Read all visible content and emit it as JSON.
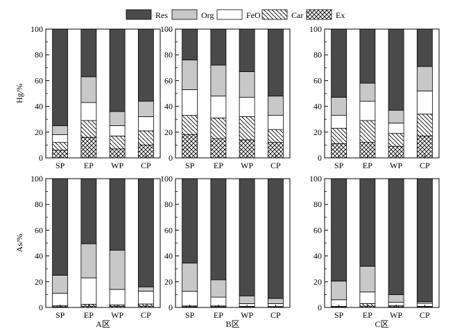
{
  "legend": {
    "items": [
      {
        "label": "Res",
        "pattern": "res"
      },
      {
        "label": "Org",
        "pattern": "org"
      },
      {
        "label": "FeO",
        "pattern": "feo"
      },
      {
        "label": "Car",
        "pattern": "car"
      },
      {
        "label": "Ex",
        "pattern": "ex"
      }
    ],
    "placement": "top-center"
  },
  "colors": {
    "res": "#4a4a4a",
    "org": "#c8c8c8",
    "feo": "#ffffff",
    "line": "#000000"
  },
  "row_labels": [
    "Hg/%",
    "As/%"
  ],
  "column_labels": [
    "A区",
    "B区",
    "C区"
  ],
  "chart_data": [
    {
      "type": "bar",
      "stacked": true,
      "row": 0,
      "col": 0,
      "ylabel": "Hg/%",
      "xlabel": "",
      "ylim": [
        0,
        100
      ],
      "yticks": [
        0,
        20,
        40,
        60,
        80,
        100
      ],
      "categories": [
        "SP",
        "EP",
        "WP",
        "CP"
      ],
      "series": [
        {
          "name": "Ex",
          "values": [
            6,
            16,
            7,
            10
          ]
        },
        {
          "name": "Car",
          "values": [
            6,
            13,
            10,
            11
          ]
        },
        {
          "name": "FeO",
          "values": [
            6,
            14,
            8,
            11
          ]
        },
        {
          "name": "Org",
          "values": [
            7,
            20,
            11,
            12
          ]
        },
        {
          "name": "Res",
          "values": [
            75,
            37,
            64,
            56
          ]
        }
      ]
    },
    {
      "type": "bar",
      "stacked": true,
      "row": 0,
      "col": 1,
      "ylabel": "",
      "xlabel": "",
      "ylim": [
        0,
        100
      ],
      "yticks": [
        0,
        20,
        40,
        60,
        80,
        100
      ],
      "categories": [
        "SP",
        "EP",
        "WP",
        "CP"
      ],
      "series": [
        {
          "name": "Ex",
          "values": [
            18,
            15,
            14,
            12
          ]
        },
        {
          "name": "Car",
          "values": [
            15,
            16,
            18,
            10
          ]
        },
        {
          "name": "FeO",
          "values": [
            20,
            17,
            15,
            11
          ]
        },
        {
          "name": "Org",
          "values": [
            23,
            24,
            20,
            15
          ]
        },
        {
          "name": "Res",
          "values": [
            24,
            28,
            33,
            52
          ]
        }
      ]
    },
    {
      "type": "bar",
      "stacked": true,
      "row": 0,
      "col": 2,
      "ylabel": "",
      "xlabel": "",
      "ylim": [
        0,
        100
      ],
      "yticks": [
        0,
        20,
        40,
        60,
        80,
        100
      ],
      "categories": [
        "SP",
        "EP",
        "WP",
        "CP"
      ],
      "series": [
        {
          "name": "Ex",
          "values": [
            11,
            12,
            9,
            17
          ]
        },
        {
          "name": "Car",
          "values": [
            12,
            17,
            10,
            17
          ]
        },
        {
          "name": "FeO",
          "values": [
            10,
            15,
            8,
            18
          ]
        },
        {
          "name": "Org",
          "values": [
            14,
            14,
            10,
            19
          ]
        },
        {
          "name": "Res",
          "values": [
            53,
            42,
            63,
            29
          ]
        }
      ]
    },
    {
      "type": "bar",
      "stacked": true,
      "row": 1,
      "col": 0,
      "ylabel": "As/%",
      "xlabel": "A区",
      "ylim": [
        0,
        100
      ],
      "yticks": [
        0,
        20,
        40,
        60,
        80,
        100
      ],
      "categories": [
        "SP",
        "EP",
        "WP",
        "CP"
      ],
      "series": [
        {
          "name": "Ex",
          "values": [
            0.5,
            1,
            0.8,
            1
          ]
        },
        {
          "name": "Car",
          "values": [
            0.8,
            1.5,
            1.2,
            1.7
          ]
        },
        {
          "name": "FeO",
          "values": [
            9.7,
            20.5,
            12,
            10
          ]
        },
        {
          "name": "Org",
          "values": [
            14,
            26.5,
            30.5,
            3.3
          ]
        },
        {
          "name": "Res",
          "values": [
            75,
            50.5,
            55.5,
            84
          ]
        }
      ]
    },
    {
      "type": "bar",
      "stacked": true,
      "row": 1,
      "col": 1,
      "ylabel": "",
      "xlabel": "B区",
      "ylim": [
        0,
        100
      ],
      "yticks": [
        0,
        20,
        40,
        60,
        80,
        100
      ],
      "categories": [
        "SP",
        "EP",
        "WP",
        "CP"
      ],
      "series": [
        {
          "name": "Ex",
          "values": [
            0.5,
            0.5,
            0.3,
            0.3
          ]
        },
        {
          "name": "Car",
          "values": [
            0.7,
            0.7,
            0.5,
            0.4
          ]
        },
        {
          "name": "FeO",
          "values": [
            11.3,
            6.8,
            2.2,
            2.3
          ]
        },
        {
          "name": "Org",
          "values": [
            22,
            13.5,
            6,
            4
          ]
        },
        {
          "name": "Res",
          "values": [
            65.5,
            78.5,
            91,
            93
          ]
        }
      ]
    },
    {
      "type": "bar",
      "stacked": true,
      "row": 1,
      "col": 2,
      "ylabel": "",
      "xlabel": "C区",
      "ylim": [
        0,
        100
      ],
      "yticks": [
        0,
        20,
        40,
        60,
        80,
        100
      ],
      "categories": [
        "SP",
        "EP",
        "WP",
        "CP"
      ],
      "series": [
        {
          "name": "Ex",
          "values": [
            0.3,
            1,
            0.5,
            0.3
          ]
        },
        {
          "name": "Car",
          "values": [
            0.5,
            2,
            0.8,
            0.5
          ]
        },
        {
          "name": "FeO",
          "values": [
            5.2,
            9,
            2.7,
            2.5
          ]
        },
        {
          "name": "Org",
          "values": [
            14.5,
            20,
            6,
            1.2
          ]
        },
        {
          "name": "Res",
          "values": [
            79.5,
            68,
            90,
            95.5
          ]
        }
      ]
    }
  ]
}
